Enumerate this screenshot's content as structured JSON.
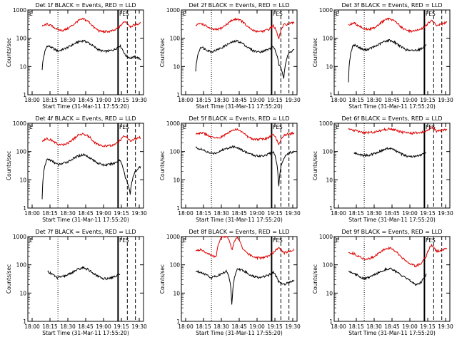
{
  "chart_data": [
    {
      "type": "line",
      "title": "Det 1f BLACK = Events, RED = LLD",
      "xlabel": "Start Time (31-Mar-11 17:55:20)",
      "ylabel": "Counts/sec",
      "yscale": "log",
      "ylim": [
        1,
        1000
      ],
      "xticks": [
        "18:00",
        "18:15",
        "18:30",
        "18:45",
        "19:00",
        "19:15",
        "19:30"
      ],
      "yticks": [
        "1",
        "10",
        "100",
        "1000"
      ],
      "annotations": [
        "E",
        "FES"
      ],
      "series": [
        {
          "name": "Events",
          "color": "#000000",
          "values": [
            8,
            55,
            45,
            35,
            40,
            48,
            60,
            75,
            82,
            68,
            50,
            38,
            34,
            36,
            40,
            55,
            25,
            20,
            22,
            18
          ]
        },
        {
          "name": "LLD",
          "color": "#dd0000",
          "values": [
            260,
            320,
            260,
            200,
            190,
            220,
            300,
            420,
            480,
            380,
            240,
            180,
            170,
            175,
            190,
            260,
            400,
            260,
            300,
            340
          ]
        }
      ]
    },
    {
      "type": "line",
      "title": "Det 2f BLACK = Events, RED = LLD",
      "xlabel": "Start Time (31-Mar-11 17:55:20)",
      "ylabel": "Counts/sec",
      "yscale": "log",
      "ylim": [
        1,
        1000
      ],
      "xticks": [
        "18:00",
        "18:15",
        "18:30",
        "18:45",
        "19:00",
        "19:15",
        "19:30"
      ],
      "yticks": [
        "1",
        "10",
        "100",
        "1000"
      ],
      "annotations": [
        "E",
        "FES"
      ],
      "series": [
        {
          "name": "Events",
          "color": "#000000",
          "values": [
            7,
            50,
            40,
            33,
            38,
            46,
            58,
            72,
            80,
            66,
            48,
            37,
            33,
            35,
            40,
            50,
            12,
            4,
            30,
            40
          ]
        },
        {
          "name": "LLD",
          "color": "#dd0000",
          "values": [
            280,
            340,
            270,
            210,
            200,
            230,
            310,
            430,
            490,
            390,
            250,
            190,
            175,
            180,
            200,
            280,
            90,
            300,
            320,
            360
          ]
        }
      ]
    },
    {
      "type": "line",
      "title": "Det 3f BLACK = Events, RED = LLD",
      "xlabel": "Start Time (31-Mar-11 17:55:20)",
      "ylabel": "Counts/sec",
      "yscale": "log",
      "ylim": [
        1,
        1000
      ],
      "xticks": [
        "18:00",
        "18:15",
        "18:30",
        "18:45",
        "19:00",
        "19:15",
        "19:30"
      ],
      "yticks": [
        "1",
        "10",
        "100",
        "1000"
      ],
      "annotations": [
        "E",
        "FES"
      ],
      "series": [
        {
          "name": "Events",
          "color": "#000000",
          "values": [
            3,
            60,
            48,
            38,
            42,
            50,
            62,
            78,
            85,
            70,
            52,
            40,
            36,
            38,
            42,
            58,
            0,
            0,
            0,
            0
          ]
        },
        {
          "name": "LLD",
          "color": "#dd0000",
          "values": [
            290,
            350,
            280,
            215,
            205,
            240,
            320,
            440,
            500,
            400,
            260,
            195,
            180,
            185,
            205,
            290,
            420,
            280,
            320,
            360
          ]
        }
      ]
    },
    {
      "type": "line",
      "title": "Det 4f BLACK = Events, RED = LLD",
      "xlabel": "Start Time (31-Mar-11 17:55:20)",
      "ylabel": "Counts/sec",
      "yscale": "log",
      "ylim": [
        1,
        1000
      ],
      "xticks": [
        "18:00",
        "18:15",
        "18:30",
        "18:45",
        "19:00",
        "19:15",
        "19:30"
      ],
      "yticks": [
        "1",
        "10",
        "100",
        "1000"
      ],
      "annotations": [
        "E",
        "FES"
      ],
      "series": [
        {
          "name": "Events",
          "color": "#000000",
          "values": [
            2,
            55,
            45,
            34,
            38,
            44,
            56,
            70,
            78,
            64,
            47,
            37,
            33,
            35,
            39,
            50,
            12,
            3,
            20,
            30
          ]
        },
        {
          "name": "LLD",
          "color": "#dd0000",
          "values": [
            240,
            290,
            240,
            180,
            170,
            200,
            270,
            380,
            430,
            340,
            220,
            165,
            155,
            160,
            175,
            240,
            370,
            230,
            280,
            320
          ]
        }
      ]
    },
    {
      "type": "line",
      "title": "Det 5f BLACK = Events, RED = LLD",
      "xlabel": "Start Time (31-Mar-11 17:55:20)",
      "ylabel": "Counts/sec",
      "yscale": "log",
      "ylim": [
        1,
        1000
      ],
      "xticks": [
        "18:00",
        "18:15",
        "18:30",
        "18:45",
        "19:00",
        "19:15",
        "19:30"
      ],
      "yticks": [
        "1",
        "10",
        "100",
        "1000"
      ],
      "annotations": [
        "E",
        "FES"
      ],
      "series": [
        {
          "name": "Events",
          "color": "#000000",
          "values": [
            140,
            120,
            100,
            85,
            90,
            110,
            130,
            150,
            140,
            110,
            90,
            75,
            70,
            72,
            80,
            100,
            3,
            60,
            90,
            100
          ]
        },
        {
          "name": "LLD",
          "color": "#dd0000",
          "values": [
            420,
            470,
            410,
            320,
            300,
            330,
            420,
            560,
            600,
            480,
            340,
            280,
            270,
            280,
            300,
            400,
            180,
            380,
            420,
            460
          ]
        }
      ]
    },
    {
      "type": "line",
      "title": "Det 6f BLACK = Events, RED = LLD",
      "xlabel": "Start Time (31-Mar-11 17:55:20)",
      "ylabel": "Counts/sec",
      "yscale": "log",
      "ylim": [
        1,
        1000
      ],
      "xticks": [
        "18:00",
        "18:15",
        "18:30",
        "18:45",
        "19:00",
        "19:15",
        "19:30"
      ],
      "yticks": [
        "1",
        "10",
        "100",
        "1000"
      ],
      "annotations": [
        "E",
        "FES"
      ],
      "series": [
        {
          "name": "Events",
          "color": "#000000",
          "values": [
            0,
            90,
            80,
            72,
            75,
            85,
            100,
            120,
            130,
            110,
            85,
            70,
            66,
            68,
            74,
            95,
            0,
            0,
            0,
            0
          ]
        },
        {
          "name": "LLD",
          "color": "#dd0000",
          "values": [
            620,
            560,
            500,
            470,
            470,
            490,
            540,
            600,
            640,
            580,
            500,
            460,
            450,
            455,
            470,
            520,
            720,
            520,
            560,
            600
          ]
        }
      ]
    },
    {
      "type": "line",
      "title": "Det 7f BLACK = Events, RED = LLD",
      "xlabel": "Start Time (31-Mar-11 17:55:20)",
      "ylabel": "Counts/sec",
      "yscale": "log",
      "ylim": [
        1,
        1000
      ],
      "xticks": [
        "18:00",
        "18:15",
        "18:30",
        "18:45",
        "19:00",
        "19:15",
        "19:30"
      ],
      "yticks": [
        "1",
        "10",
        "100",
        "1000"
      ],
      "annotations": [
        "E",
        "FES"
      ],
      "series": [
        {
          "name": "Events",
          "color": "#000000",
          "values": [
            0,
            60,
            45,
            35,
            38,
            45,
            56,
            70,
            80,
            66,
            47,
            37,
            32,
            34,
            38,
            48,
            0,
            0,
            0,
            0
          ]
        }
      ]
    },
    {
      "type": "line",
      "title": "Det 8f BLACK = Events, RED = LLD",
      "xlabel": "Start Time (31-Mar-11 17:55:20)",
      "ylabel": "Counts/sec",
      "yscale": "log",
      "ylim": [
        1,
        1000
      ],
      "xticks": [
        "18:00",
        "18:15",
        "18:30",
        "18:45",
        "19:00",
        "19:15",
        "19:30"
      ],
      "yticks": [
        "1",
        "10",
        "100",
        "1000"
      ],
      "annotations": [
        "E",
        "FES"
      ],
      "series": [
        {
          "name": "Events",
          "color": "#000000",
          "values": [
            60,
            55,
            45,
            35,
            40,
            48,
            60,
            2,
            70,
            65,
            50,
            40,
            36,
            38,
            42,
            55,
            25,
            20,
            25,
            28
          ]
        },
        {
          "name": "LLD",
          "color": "#dd0000",
          "values": [
            300,
            350,
            270,
            210,
            200,
            1000,
            1000,
            320,
            1000,
            380,
            250,
            190,
            175,
            180,
            200,
            270,
            400,
            260,
            300,
            340
          ]
        }
      ]
    },
    {
      "type": "line",
      "title": "Det 9f BLACK = Events, RED = LLD",
      "xlabel": "Start Time (31-Mar-11 17:55:20)",
      "ylabel": "Counts/sec",
      "yscale": "log",
      "ylim": [
        1,
        1000
      ],
      "xticks": [
        "18:00",
        "18:15",
        "18:30",
        "18:45",
        "19:00",
        "19:15",
        "19:30"
      ],
      "yticks": [
        "1",
        "10",
        "100",
        "1000"
      ],
      "annotations": [
        "E",
        "FES"
      ],
      "series": [
        {
          "name": "Events",
          "color": "#000000",
          "values": [
            60,
            50,
            40,
            32,
            36,
            44,
            55,
            68,
            75,
            60,
            44,
            34,
            26,
            20,
            24,
            45,
            0,
            0,
            0,
            0
          ]
        },
        {
          "name": "LLD",
          "color": "#dd0000",
          "values": [
            280,
            250,
            200,
            160,
            165,
            200,
            260,
            360,
            400,
            310,
            200,
            140,
            110,
            90,
            110,
            200,
            500,
            300,
            340,
            380
          ]
        }
      ]
    }
  ]
}
